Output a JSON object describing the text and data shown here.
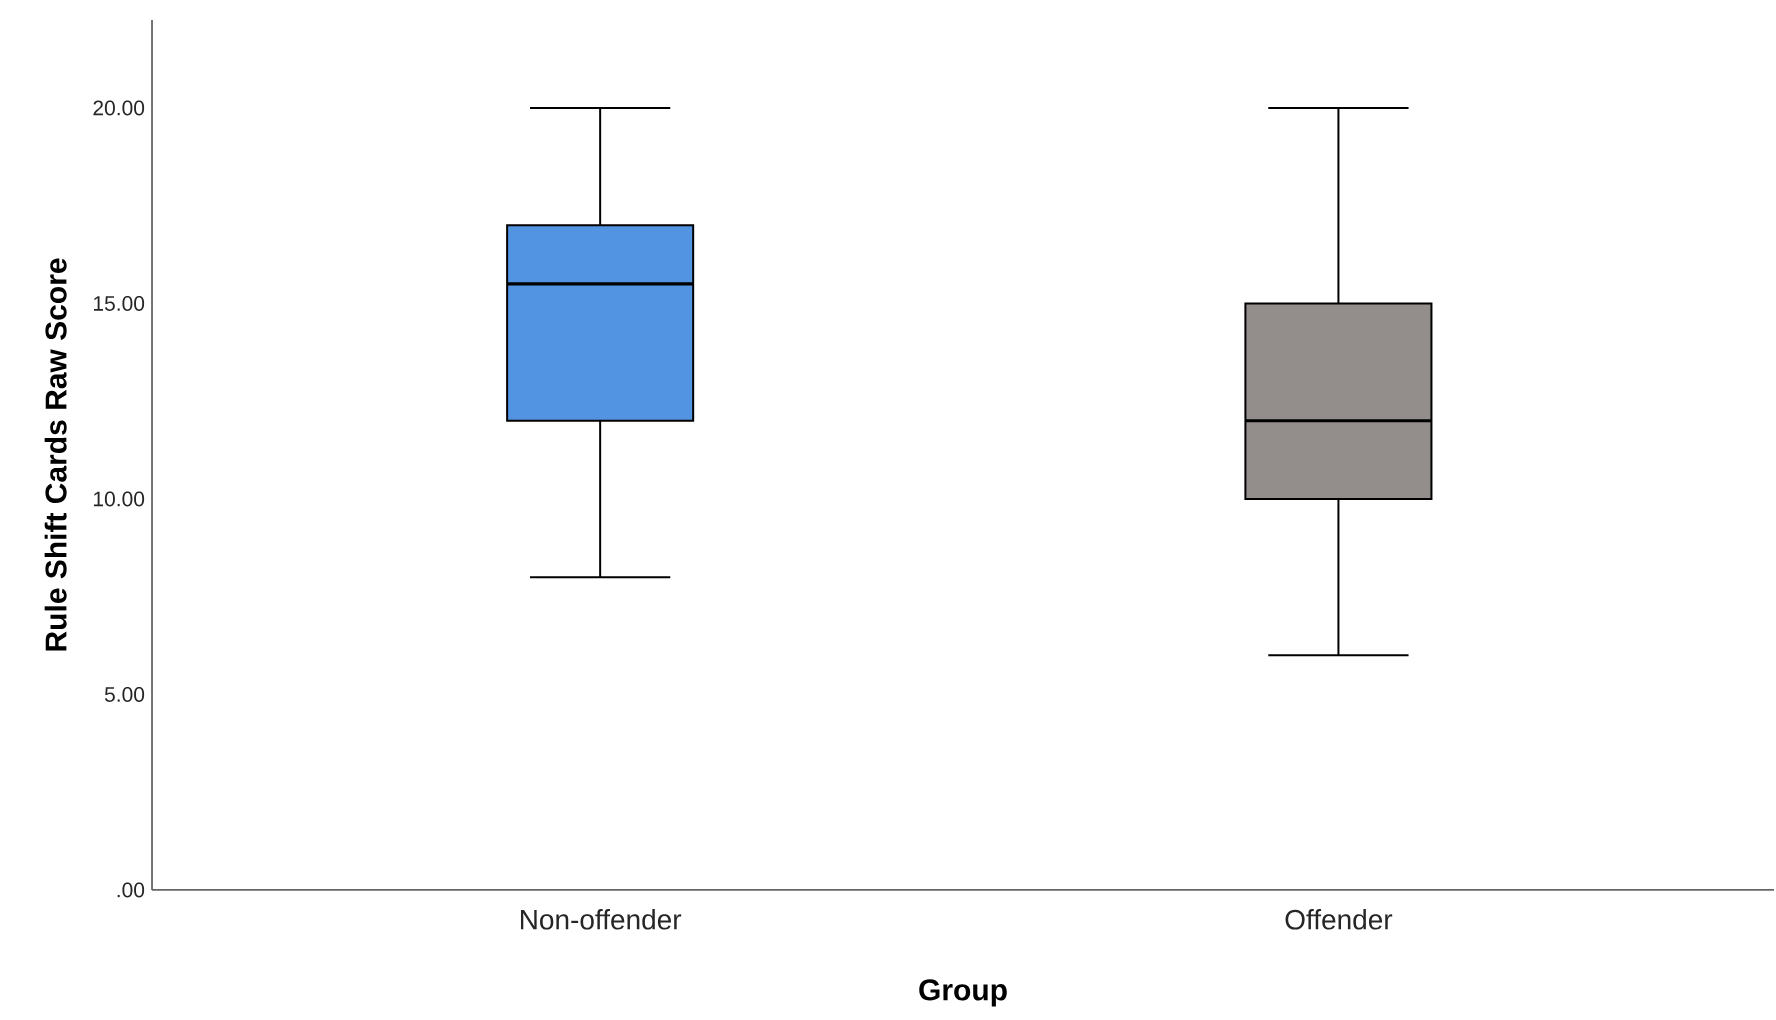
{
  "chart_data": {
    "type": "box",
    "xlabel": "Group",
    "ylabel": "Rule Shift Cards Raw Score",
    "categories": [
      "Non-offender",
      "Offender"
    ],
    "boxes": [
      {
        "low": 8,
        "q1": 12,
        "median": 15.5,
        "q3": 17,
        "high": 20
      },
      {
        "low": 6,
        "q1": 10,
        "median": 12,
        "q3": 15,
        "high": 20
      }
    ],
    "colors": [
      "#5294e2",
      "#938e8b"
    ],
    "ylim": [
      0,
      22.25
    ],
    "yticks": [
      {
        "value": 0,
        "label": ".00"
      },
      {
        "value": 5,
        "label": "5.00"
      },
      {
        "value": 10,
        "label": "10.00"
      },
      {
        "value": 15,
        "label": "15.00"
      },
      {
        "value": 20,
        "label": "20.00"
      }
    ],
    "grid": false
  }
}
